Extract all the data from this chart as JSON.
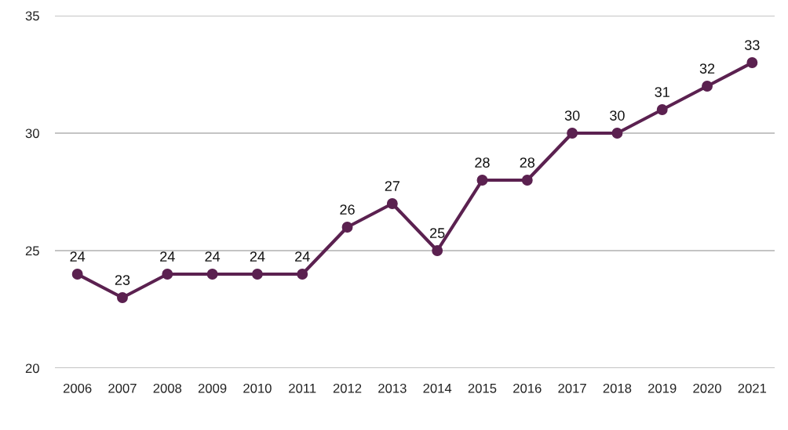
{
  "chart_data": {
    "type": "line",
    "categories": [
      "2006",
      "2007",
      "2008",
      "2009",
      "2010",
      "2011",
      "2012",
      "2013",
      "2014",
      "2015",
      "2016",
      "2017",
      "2018",
      "2019",
      "2020",
      "2021"
    ],
    "series": [
      {
        "color": "#5b2150",
        "values": [
          24,
          23,
          24,
          24,
          24,
          24,
          26,
          27,
          25,
          28,
          28,
          30,
          30,
          31,
          32,
          33
        ]
      }
    ],
    "ylim": [
      20,
      35
    ],
    "yticks": [
      20,
      25,
      30,
      35
    ],
    "grid": "y",
    "marker": "circle",
    "line_style": "solid",
    "data_labels": true
  }
}
